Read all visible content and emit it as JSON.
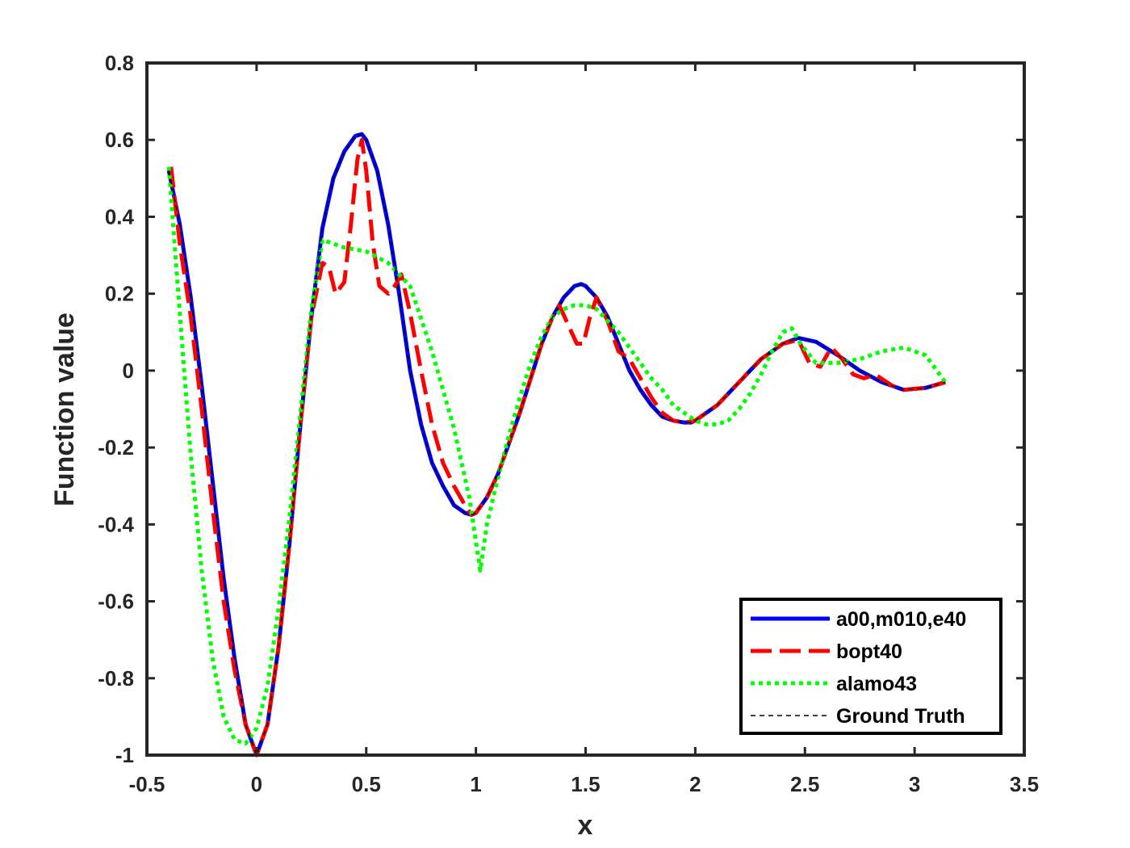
{
  "chart_data": {
    "type": "line",
    "xlabel": "x",
    "ylabel": "Function value",
    "xlim": [
      -0.5,
      3.5
    ],
    "ylim": [
      -1,
      0.8
    ],
    "xticks": [
      "-0.5",
      "0",
      "0.5",
      "1",
      "1.5",
      "2",
      "2.5",
      "3",
      "3.5"
    ],
    "yticks": [
      "-1",
      "-0.8",
      "-0.6",
      "-0.4",
      "-0.2",
      "0",
      "0.2",
      "0.4",
      "0.6",
      "0.8"
    ],
    "grid": false,
    "legend_position": "bottom-right",
    "series": [
      {
        "name": "a00,m010,e40",
        "color": "#0000ff",
        "style": "solid",
        "x": [
          -0.4,
          -0.35,
          -0.3,
          -0.25,
          -0.2,
          -0.15,
          -0.1,
          -0.05,
          0,
          0.05,
          0.1,
          0.15,
          0.2,
          0.25,
          0.3,
          0.35,
          0.4,
          0.45,
          0.48,
          0.5,
          0.55,
          0.6,
          0.65,
          0.7,
          0.75,
          0.8,
          0.85,
          0.9,
          0.95,
          0.98,
          1.0,
          1.05,
          1.1,
          1.15,
          1.2,
          1.25,
          1.3,
          1.35,
          1.4,
          1.45,
          1.48,
          1.5,
          1.55,
          1.6,
          1.65,
          1.7,
          1.75,
          1.8,
          1.85,
          1.9,
          1.95,
          1.98,
          2.0,
          2.1,
          2.2,
          2.3,
          2.4,
          2.47,
          2.55,
          2.65,
          2.75,
          2.85,
          2.95,
          3.05,
          3.14
        ],
        "y": [
          0.52,
          0.38,
          0.19,
          -0.04,
          -0.29,
          -0.54,
          -0.75,
          -0.92,
          -1.0,
          -0.92,
          -0.72,
          -0.45,
          -0.14,
          0.14,
          0.37,
          0.5,
          0.57,
          0.61,
          0.615,
          0.6,
          0.52,
          0.38,
          0.2,
          0.0,
          -0.14,
          -0.24,
          -0.3,
          -0.35,
          -0.37,
          -0.375,
          -0.37,
          -0.33,
          -0.27,
          -0.19,
          -0.11,
          -0.02,
          0.07,
          0.14,
          0.19,
          0.22,
          0.225,
          0.22,
          0.19,
          0.14,
          0.07,
          0.0,
          -0.05,
          -0.09,
          -0.12,
          -0.13,
          -0.135,
          -0.135,
          -0.13,
          -0.09,
          -0.03,
          0.03,
          0.07,
          0.085,
          0.075,
          0.04,
          0.0,
          -0.03,
          -0.05,
          -0.045,
          -0.03
        ]
      },
      {
        "name": "bopt40",
        "color": "#ff0000",
        "style": "dashed",
        "x": [
          -0.39,
          -0.35,
          -0.3,
          -0.25,
          -0.2,
          -0.15,
          -0.1,
          -0.05,
          0,
          0.05,
          0.1,
          0.15,
          0.2,
          0.25,
          0.3,
          0.33,
          0.36,
          0.4,
          0.43,
          0.46,
          0.48,
          0.5,
          0.53,
          0.56,
          0.6,
          0.63,
          0.66,
          0.7,
          0.75,
          0.8,
          0.85,
          0.9,
          0.95,
          0.98,
          1.0,
          1.05,
          1.1,
          1.15,
          1.2,
          1.25,
          1.3,
          1.35,
          1.38,
          1.42,
          1.46,
          1.49,
          1.52,
          1.55,
          1.6,
          1.65,
          1.7,
          1.75,
          1.8,
          1.85,
          1.9,
          1.95,
          2.0,
          2.1,
          2.2,
          2.3,
          2.4,
          2.47,
          2.52,
          2.57,
          2.62,
          2.67,
          2.72,
          2.77,
          2.82,
          2.9,
          2.95,
          3.05,
          3.14
        ],
        "y": [
          0.53,
          0.33,
          0.14,
          -0.1,
          -0.36,
          -0.6,
          -0.78,
          -0.92,
          -1.0,
          -0.92,
          -0.72,
          -0.45,
          -0.14,
          0.14,
          0.28,
          0.27,
          0.2,
          0.23,
          0.38,
          0.55,
          0.6,
          0.52,
          0.33,
          0.22,
          0.2,
          0.22,
          0.25,
          0.15,
          0.0,
          -0.14,
          -0.24,
          -0.3,
          -0.35,
          -0.375,
          -0.37,
          -0.33,
          -0.27,
          -0.19,
          -0.11,
          -0.02,
          0.07,
          0.14,
          0.17,
          0.12,
          0.07,
          0.07,
          0.14,
          0.19,
          0.13,
          0.05,
          0.03,
          -0.02,
          -0.07,
          -0.11,
          -0.13,
          -0.135,
          -0.13,
          -0.09,
          -0.03,
          0.03,
          0.07,
          0.08,
          0.02,
          0.01,
          0.06,
          0.03,
          -0.01,
          -0.02,
          -0.01,
          -0.04,
          -0.05,
          -0.045,
          -0.03
        ]
      },
      {
        "name": "alamo43",
        "color": "#00ff00",
        "style": "dotted",
        "x": [
          -0.4,
          -0.37,
          -0.33,
          -0.3,
          -0.25,
          -0.2,
          -0.15,
          -0.1,
          -0.05,
          0,
          0.05,
          0.1,
          0.15,
          0.2,
          0.25,
          0.3,
          0.35,
          0.4,
          0.5,
          0.6,
          0.7,
          0.8,
          0.9,
          0.97,
          1.02,
          1.05,
          1.1,
          1.15,
          1.2,
          1.25,
          1.3,
          1.35,
          1.4,
          1.45,
          1.5,
          1.55,
          1.6,
          1.65,
          1.7,
          1.75,
          1.8,
          1.85,
          1.9,
          1.95,
          2.0,
          2.05,
          2.1,
          2.15,
          2.2,
          2.25,
          2.3,
          2.35,
          2.4,
          2.44,
          2.48,
          2.55,
          2.65,
          2.75,
          2.85,
          2.95,
          3.05,
          3.14
        ],
        "y": [
          0.53,
          0.3,
          0.0,
          -0.22,
          -0.52,
          -0.75,
          -0.9,
          -0.96,
          -0.97,
          -0.93,
          -0.82,
          -0.62,
          -0.38,
          -0.11,
          0.16,
          0.34,
          0.33,
          0.32,
          0.31,
          0.28,
          0.22,
          0.05,
          -0.15,
          -0.33,
          -0.52,
          -0.4,
          -0.28,
          -0.17,
          -0.07,
          0.02,
          0.09,
          0.14,
          0.16,
          0.17,
          0.17,
          0.16,
          0.13,
          0.1,
          0.06,
          0.02,
          -0.02,
          -0.05,
          -0.09,
          -0.11,
          -0.13,
          -0.14,
          -0.14,
          -0.13,
          -0.1,
          -0.06,
          -0.01,
          0.05,
          0.1,
          0.11,
          0.07,
          0.02,
          0.02,
          0.03,
          0.05,
          0.06,
          0.04,
          -0.03
        ]
      },
      {
        "name": "Ground Truth",
        "color": "#000000",
        "style": "thin-dashed",
        "x": [
          -0.4,
          -0.35,
          -0.3,
          -0.25,
          -0.2,
          -0.15,
          -0.1,
          -0.05,
          0,
          0.05,
          0.1,
          0.15,
          0.2,
          0.25,
          0.3,
          0.35,
          0.4,
          0.45,
          0.48,
          0.5,
          0.55,
          0.6,
          0.65,
          0.7,
          0.75,
          0.8,
          0.85,
          0.9,
          0.95,
          0.98,
          1.0,
          1.05,
          1.1,
          1.15,
          1.2,
          1.25,
          1.3,
          1.35,
          1.4,
          1.45,
          1.48,
          1.5,
          1.55,
          1.6,
          1.65,
          1.7,
          1.75,
          1.8,
          1.85,
          1.9,
          1.95,
          1.98,
          2.0,
          2.1,
          2.2,
          2.3,
          2.4,
          2.47,
          2.55,
          2.65,
          2.75,
          2.85,
          2.95,
          3.05,
          3.14
        ],
        "y": [
          0.52,
          0.38,
          0.19,
          -0.04,
          -0.29,
          -0.54,
          -0.75,
          -0.92,
          -1.0,
          -0.92,
          -0.72,
          -0.45,
          -0.14,
          0.14,
          0.37,
          0.5,
          0.57,
          0.61,
          0.615,
          0.6,
          0.52,
          0.38,
          0.2,
          0.0,
          -0.14,
          -0.24,
          -0.3,
          -0.35,
          -0.37,
          -0.375,
          -0.37,
          -0.33,
          -0.27,
          -0.19,
          -0.11,
          -0.02,
          0.07,
          0.14,
          0.19,
          0.22,
          0.225,
          0.22,
          0.19,
          0.14,
          0.07,
          0.0,
          -0.05,
          -0.09,
          -0.12,
          -0.13,
          -0.135,
          -0.135,
          -0.13,
          -0.09,
          -0.03,
          0.03,
          0.07,
          0.085,
          0.075,
          0.04,
          0.0,
          -0.03,
          -0.05,
          -0.045,
          -0.03
        ]
      }
    ]
  }
}
